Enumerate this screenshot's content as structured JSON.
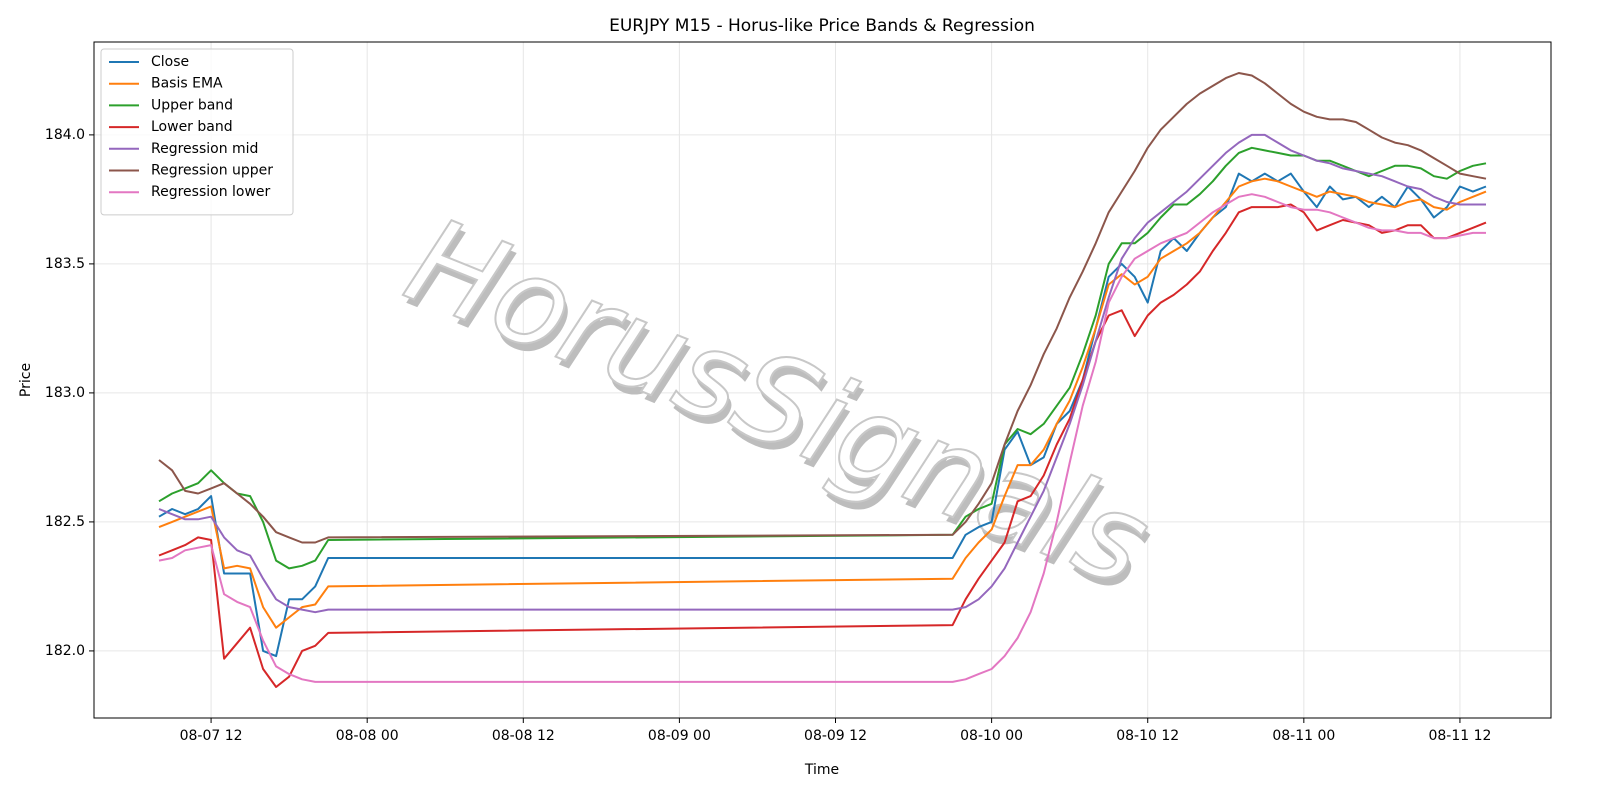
{
  "chart_data": {
    "type": "line",
    "title": "EURJPY M15 - Horus-like Price Bands & Regression",
    "xlabel": "Time",
    "ylabel": "Price",
    "watermark": "HorusSignals",
    "grid": true,
    "legend": "upper left",
    "x": [
      "08-07 08",
      "08-07 09",
      "08-07 10",
      "08-07 11",
      "08-07 12",
      "08-07 13",
      "08-07 14",
      "08-07 15",
      "08-07 16",
      "08-07 17",
      "08-07 18",
      "08-07 19",
      "08-07 20",
      "08-07 21",
      "08-09 21",
      "08-09 22",
      "08-09 23",
      "08-10 00",
      "08-10 01",
      "08-10 02",
      "08-10 03",
      "08-10 04",
      "08-10 05",
      "08-10 06",
      "08-10 07",
      "08-10 08",
      "08-10 09",
      "08-10 10",
      "08-10 11",
      "08-10 12",
      "08-10 13",
      "08-10 14",
      "08-10 15",
      "08-10 16",
      "08-10 17",
      "08-10 18",
      "08-10 19",
      "08-10 20",
      "08-10 21",
      "08-10 22",
      "08-10 23",
      "08-11 00",
      "08-11 01",
      "08-11 02",
      "08-11 03",
      "08-11 04",
      "08-11 05",
      "08-11 06",
      "08-11 07",
      "08-11 08",
      "08-11 09",
      "08-11 10",
      "08-11 11",
      "08-11 12",
      "08-11 13",
      "08-11 14"
    ],
    "xlim": [
      "08-07 03",
      "08-11 19"
    ],
    "xticks": [
      "08-07 12",
      "08-08 00",
      "08-08 12",
      "08-09 00",
      "08-09 12",
      "08-10 00",
      "08-10 12",
      "08-11 00",
      "08-11 12"
    ],
    "ylim": [
      181.74,
      184.36
    ],
    "yticks": [
      {
        "value": 182,
        "label": "182.0"
      },
      {
        "value": 182.5,
        "label": "182.5"
      },
      {
        "value": 183,
        "label": "183.0"
      },
      {
        "value": 183.5,
        "label": "183.5"
      },
      {
        "value": 184,
        "label": "184.0"
      }
    ],
    "series": [
      {
        "name": "Close",
        "color": "#1f77b4",
        "values": [
          182.52,
          182.55,
          182.53,
          182.55,
          182.6,
          182.3,
          182.3,
          182.3,
          182.0,
          181.98,
          182.2,
          182.2,
          182.25,
          182.36,
          182.36,
          182.45,
          182.48,
          182.5,
          182.78,
          182.85,
          182.72,
          182.75,
          182.88,
          182.93,
          183.05,
          183.25,
          183.45,
          183.5,
          183.45,
          183.35,
          183.55,
          183.6,
          183.55,
          183.62,
          183.68,
          183.72,
          183.85,
          183.82,
          183.85,
          183.82,
          183.85,
          183.78,
          183.72,
          183.8,
          183.75,
          183.76,
          183.72,
          183.76,
          183.72,
          183.8,
          183.75,
          183.68,
          183.72,
          183.8,
          183.78,
          183.8
        ]
      },
      {
        "name": "Basis EMA",
        "color": "#ff7f0e",
        "values": [
          182.48,
          182.5,
          182.52,
          182.54,
          182.56,
          182.32,
          182.33,
          182.32,
          182.17,
          182.09,
          182.13,
          182.17,
          182.18,
          182.25,
          182.28,
          182.36,
          182.42,
          182.47,
          182.6,
          182.72,
          182.72,
          182.78,
          182.88,
          182.97,
          183.1,
          183.25,
          183.42,
          183.46,
          183.42,
          183.45,
          183.52,
          183.55,
          183.58,
          183.62,
          183.68,
          183.74,
          183.8,
          183.82,
          183.83,
          183.82,
          183.8,
          183.78,
          183.76,
          183.78,
          183.77,
          183.76,
          183.74,
          183.73,
          183.72,
          183.74,
          183.75,
          183.72,
          183.71,
          183.74,
          183.76,
          183.78
        ]
      },
      {
        "name": "Upper band",
        "color": "#2ca02c",
        "values": [
          182.58,
          182.61,
          182.63,
          182.65,
          182.7,
          182.65,
          182.61,
          182.6,
          182.5,
          182.35,
          182.32,
          182.33,
          182.35,
          182.43,
          182.45,
          182.52,
          182.55,
          182.57,
          182.8,
          182.86,
          182.84,
          182.88,
          182.95,
          183.02,
          183.15,
          183.3,
          183.5,
          183.58,
          183.58,
          183.62,
          183.68,
          183.73,
          183.73,
          183.77,
          183.82,
          183.88,
          183.93,
          183.95,
          183.94,
          183.93,
          183.92,
          183.92,
          183.9,
          183.9,
          183.88,
          183.86,
          183.84,
          183.86,
          183.88,
          183.88,
          183.87,
          183.84,
          183.83,
          183.86,
          183.88,
          183.89
        ]
      },
      {
        "name": "Lower band",
        "color": "#d62728",
        "values": [
          182.37,
          182.39,
          182.41,
          182.44,
          182.43,
          181.97,
          182.03,
          182.09,
          181.93,
          181.86,
          181.9,
          182.0,
          182.02,
          182.07,
          182.1,
          182.2,
          182.28,
          182.35,
          182.42,
          182.58,
          182.6,
          182.68,
          182.8,
          182.9,
          183.05,
          183.2,
          183.3,
          183.32,
          183.22,
          183.3,
          183.35,
          183.38,
          183.42,
          183.47,
          183.55,
          183.62,
          183.7,
          183.72,
          183.72,
          183.72,
          183.73,
          183.7,
          183.63,
          183.65,
          183.67,
          183.66,
          183.65,
          183.62,
          183.63,
          183.65,
          183.65,
          183.6,
          183.6,
          183.62,
          183.64,
          183.66
        ]
      },
      {
        "name": "Regression mid",
        "color": "#9467bd",
        "values": [
          182.55,
          182.53,
          182.51,
          182.51,
          182.52,
          182.44,
          182.39,
          182.37,
          182.28,
          182.2,
          182.17,
          182.16,
          182.15,
          182.16,
          182.16,
          182.17,
          182.2,
          182.25,
          182.32,
          182.42,
          182.52,
          182.62,
          182.75,
          182.88,
          183.03,
          183.2,
          183.37,
          183.52,
          183.6,
          183.66,
          183.7,
          183.74,
          183.78,
          183.83,
          183.88,
          183.93,
          183.97,
          184.0,
          184.0,
          183.97,
          183.94,
          183.92,
          183.9,
          183.89,
          183.87,
          183.86,
          183.85,
          183.84,
          183.82,
          183.8,
          183.79,
          183.76,
          183.74,
          183.73,
          183.73,
          183.73
        ]
      },
      {
        "name": "Regression upper",
        "color": "#8c564b",
        "values": [
          182.74,
          182.7,
          182.62,
          182.61,
          182.63,
          182.65,
          182.61,
          182.57,
          182.52,
          182.46,
          182.44,
          182.42,
          182.42,
          182.44,
          182.45,
          182.5,
          182.57,
          182.65,
          182.8,
          182.93,
          183.03,
          183.15,
          183.25,
          183.37,
          183.47,
          183.58,
          183.7,
          183.78,
          183.86,
          183.95,
          184.02,
          184.07,
          184.12,
          184.16,
          184.19,
          184.22,
          184.24,
          184.23,
          184.2,
          184.16,
          184.12,
          184.09,
          184.07,
          184.06,
          184.06,
          184.05,
          184.02,
          183.99,
          183.97,
          183.96,
          183.94,
          183.91,
          183.88,
          183.85,
          183.84,
          183.83
        ]
      },
      {
        "name": "Regression lower",
        "color": "#e377c2",
        "values": [
          182.35,
          182.36,
          182.39,
          182.4,
          182.41,
          182.22,
          182.19,
          182.17,
          182.04,
          181.94,
          181.91,
          181.89,
          181.88,
          181.88,
          181.88,
          181.89,
          181.91,
          181.93,
          181.98,
          182.05,
          182.15,
          182.3,
          182.5,
          182.73,
          182.95,
          183.12,
          183.35,
          183.45,
          183.52,
          183.55,
          183.58,
          183.6,
          183.62,
          183.66,
          183.7,
          183.73,
          183.76,
          183.77,
          183.76,
          183.74,
          183.72,
          183.71,
          183.71,
          183.7,
          183.68,
          183.66,
          183.64,
          183.63,
          183.63,
          183.62,
          183.62,
          183.6,
          183.6,
          183.61,
          183.62,
          183.62
        ]
      }
    ]
  }
}
